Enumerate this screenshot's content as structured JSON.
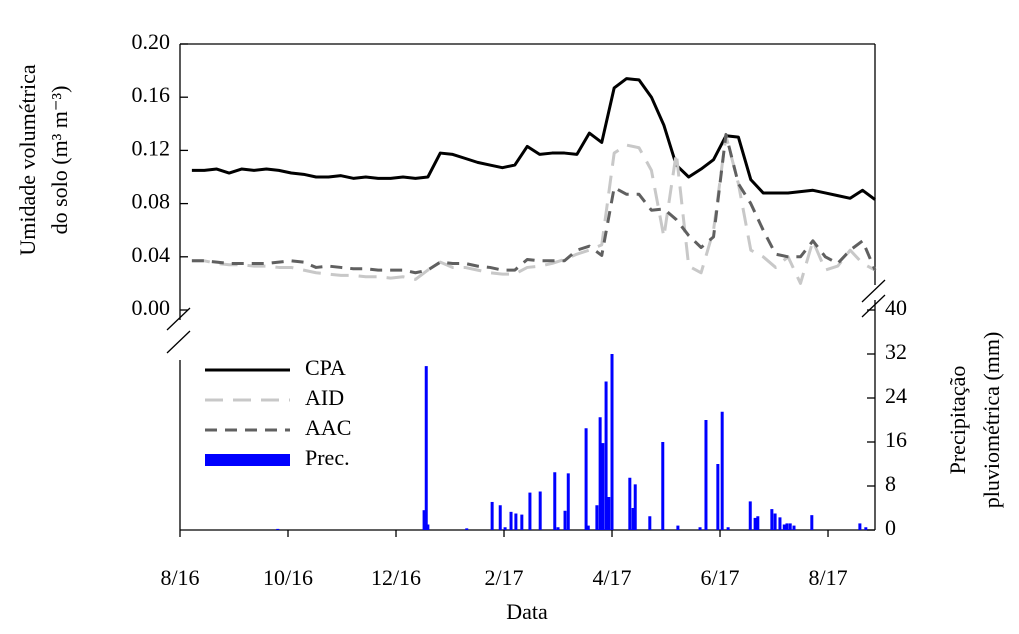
{
  "chart_data": [
    {
      "type": "line",
      "ylabel": [
        "Umidade volumétrica",
        "do solo (m³ m⁻³)"
      ],
      "xlim": [
        0,
        12.87
      ],
      "ylim": [
        0,
        0.2
      ],
      "yticks": [
        {
          "value": 0,
          "label": "0.00"
        },
        0.04,
        0.08,
        0.12,
        0.16,
        {
          "value": 0.2,
          "label": "0.20"
        }
      ],
      "x": [
        0.22,
        0.45,
        0.68,
        0.91,
        1.14,
        1.37,
        1.6,
        1.83,
        2.06,
        2.29,
        2.52,
        2.75,
        2.98,
        3.21,
        3.44,
        3.67,
        3.9,
        4.13,
        4.36,
        4.59,
        4.82,
        5.05,
        5.28,
        5.51,
        5.74,
        5.97,
        6.2,
        6.43,
        6.66,
        6.89,
        7.12,
        7.35,
        7.58,
        7.81,
        8.04,
        8.27,
        8.5,
        8.73,
        8.96,
        9.19,
        9.42,
        9.65,
        9.88,
        10.11,
        10.34,
        10.57,
        10.8,
        11.03,
        11.26,
        11.49,
        11.72,
        11.95,
        12.18,
        12.41,
        12.64,
        12.87
      ],
      "series": [
        {
          "name": "CPA",
          "color": "#000000",
          "dash": "none",
          "values": [
            0.105,
            0.105,
            0.106,
            0.103,
            0.106,
            0.105,
            0.106,
            0.105,
            0.103,
            0.102,
            0.1,
            0.1,
            0.101,
            0.099,
            0.1,
            0.099,
            0.099,
            0.1,
            0.099,
            0.1,
            0.118,
            0.117,
            0.114,
            0.111,
            0.109,
            0.107,
            0.109,
            0.123,
            0.117,
            0.118,
            0.118,
            0.117,
            0.133,
            0.126,
            0.167,
            0.174,
            0.173,
            0.16,
            0.139,
            0.109,
            0.1,
            0.106,
            0.113,
            0.131,
            0.13,
            0.098,
            0.088,
            0.088,
            0.088,
            0.089,
            0.09,
            0.088,
            0.086,
            0.084,
            0.09,
            0.083
          ]
        },
        {
          "name": "AID",
          "color": "#c8c8c8",
          "dash": "18,10",
          "values": [
            0.037,
            0.037,
            0.035,
            0.034,
            0.034,
            0.033,
            0.033,
            0.032,
            0.032,
            0.03,
            0.028,
            0.027,
            0.026,
            0.026,
            0.025,
            0.025,
            0.024,
            0.025,
            0.023,
            0.03,
            0.036,
            0.032,
            0.032,
            0.03,
            0.028,
            0.027,
            0.027,
            0.032,
            0.033,
            0.035,
            0.038,
            0.042,
            0.045,
            0.049,
            0.118,
            0.124,
            0.122,
            0.105,
            0.055,
            0.118,
            0.033,
            0.028,
            0.06,
            0.131,
            0.095,
            0.045,
            0.04,
            0.032,
            0.04,
            0.02,
            0.052,
            0.03,
            0.033,
            0.045,
            0.035,
            0.03
          ]
        },
        {
          "name": "AAC",
          "color": "#606060",
          "dash": "12,8",
          "values": [
            0.037,
            0.037,
            0.036,
            0.035,
            0.035,
            0.035,
            0.035,
            0.036,
            0.037,
            0.036,
            0.032,
            0.033,
            0.032,
            0.031,
            0.031,
            0.03,
            0.03,
            0.03,
            0.028,
            0.03,
            0.036,
            0.035,
            0.035,
            0.033,
            0.032,
            0.03,
            0.03,
            0.038,
            0.037,
            0.037,
            0.037,
            0.045,
            0.048,
            0.041,
            0.092,
            0.087,
            0.087,
            0.075,
            0.076,
            0.068,
            0.056,
            0.047,
            0.055,
            0.132,
            0.095,
            0.08,
            0.06,
            0.042,
            0.04,
            0.04,
            0.052,
            0.04,
            0.035,
            0.045,
            0.052,
            0.03
          ]
        }
      ]
    },
    {
      "type": "bar",
      "name": "Prec.",
      "color": "#0000ff",
      "xlabel": "Data",
      "y2label": [
        "Precipitação",
        "pluviométrica (mm)"
      ],
      "xlim": [
        0,
        12.87
      ],
      "xticks": [
        {
          "value": 0,
          "label": "8/16"
        },
        {
          "value": 2,
          "label": "10/16"
        },
        {
          "value": 4,
          "label": "12/16"
        },
        {
          "value": 6,
          "label": "2/17"
        },
        {
          "value": 8,
          "label": "4/17"
        },
        {
          "value": 10,
          "label": "6/17"
        },
        {
          "value": 12,
          "label": "8/17"
        }
      ],
      "y2lim": [
        0,
        40
      ],
      "y2ticks": [
        0,
        8,
        16,
        24,
        32,
        40
      ],
      "x": [
        1.81,
        4.52,
        4.56,
        4.59,
        5.31,
        5.78,
        5.93,
        6.02,
        6.13,
        6.22,
        6.33,
        6.48,
        6.67,
        6.94,
        7.0,
        7.13,
        7.19,
        7.52,
        7.56,
        7.72,
        7.78,
        7.83,
        7.89,
        7.94,
        8.0,
        8.33,
        8.39,
        8.43,
        8.7,
        8.94,
        9.22,
        9.63,
        9.74,
        9.96,
        10.04,
        10.15,
        10.56,
        10.65,
        10.7,
        10.96,
        11.02,
        11.11,
        11.19,
        11.24,
        11.3,
        11.37,
        11.7,
        12.59,
        12.7
      ],
      "values": [
        0.2,
        3.6,
        29.8,
        1.0,
        0.3,
        5.1,
        4.5,
        0.5,
        3.3,
        3.0,
        2.8,
        6.8,
        7.0,
        10.5,
        0.5,
        3.5,
        10.3,
        18.5,
        0.8,
        4.5,
        20.5,
        15.8,
        27.0,
        6.0,
        32.0,
        9.5,
        4.0,
        8.3,
        2.5,
        16.0,
        0.8,
        0.5,
        20.0,
        12.0,
        21.5,
        0.5,
        5.2,
        2.2,
        2.5,
        3.8,
        3.0,
        2.3,
        1.0,
        1.2,
        1.2,
        0.8,
        2.7,
        1.2,
        0.5
      ]
    }
  ]
}
